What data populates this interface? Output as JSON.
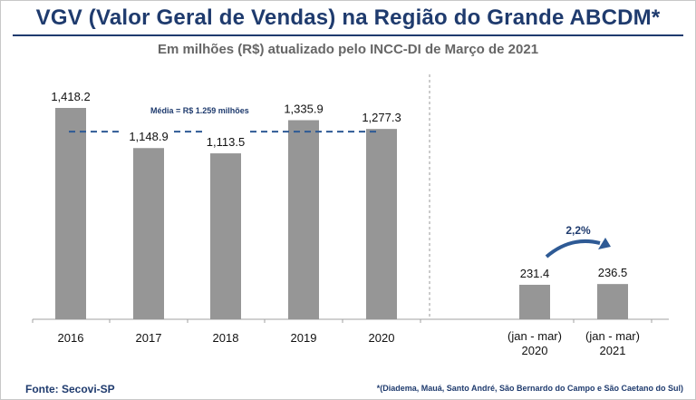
{
  "title": "VGV (Valor Geral de Vendas) na Região do Grande ABCDM*",
  "subtitle": "Em milhões (R$) atualizado pelo INCC-DI de Março de 2021",
  "source": "Fonte: Secovi-SP",
  "footnote": "*(Diadema, Mauá, Santo André, São Bernardo do Campo e São Caetano do Sul)",
  "colors": {
    "bar": "#969696",
    "title": "#1f3b6e",
    "average_line": "#2e5a95"
  },
  "chart_data": {
    "type": "bar",
    "categories": [
      "2016",
      "2017",
      "2018",
      "2019",
      "2020",
      "(jan - mar) 2020",
      "(jan - mar) 2021"
    ],
    "category_lines": [
      [
        "2016"
      ],
      [
        "2017"
      ],
      [
        "2018"
      ],
      [
        "2019"
      ],
      [
        "2020"
      ],
      [
        "(jan - mar)",
        "2020"
      ],
      [
        "(jan - mar)",
        "2021"
      ]
    ],
    "values": [
      1418.2,
      1148.9,
      1113.5,
      1335.9,
      1277.3,
      231.4,
      236.5
    ],
    "value_labels": [
      "1,418.2",
      "1,148.9",
      "1,113.5",
      "1,335.9",
      "1,277.3",
      "231.4",
      "236.5"
    ],
    "average": {
      "value": 1259,
      "label": "Média = R$ 1.259 milhões"
    },
    "growth": {
      "label": "2,2%",
      "from": "(jan - mar) 2020",
      "to": "(jan - mar) 2021"
    },
    "ylim": [
      0,
      1500
    ],
    "grid": false,
    "legend": "none"
  }
}
